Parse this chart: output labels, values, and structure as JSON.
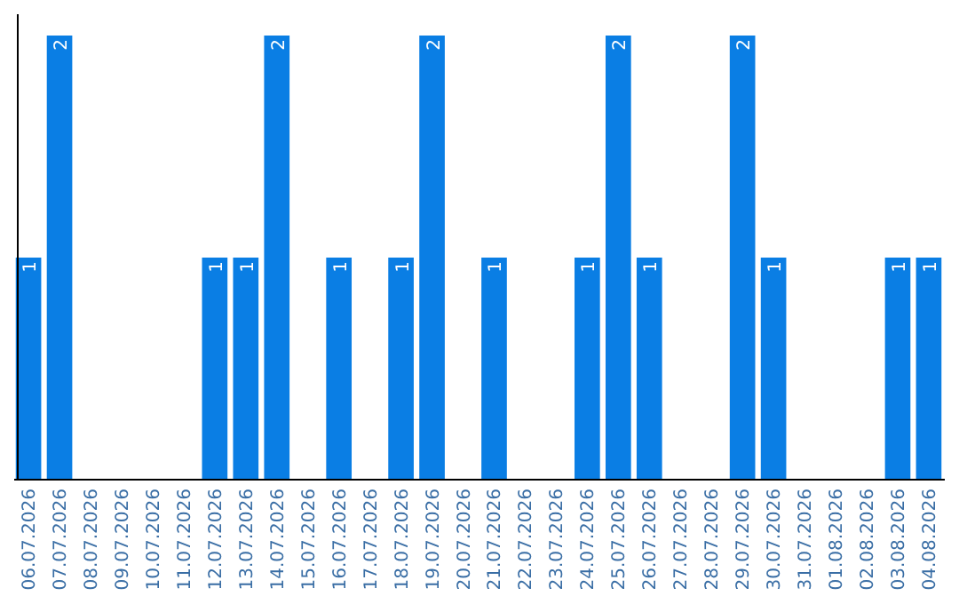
{
  "chart_data": {
    "type": "bar",
    "color": "#0a7ee4",
    "categories": [
      "06.07.2026",
      "07.07.2026",
      "08.07.2026",
      "09.07.2026",
      "10.07.2026",
      "11.07.2026",
      "12.07.2026",
      "13.07.2026",
      "14.07.2026",
      "15.07.2026",
      "16.07.2026",
      "17.07.2026",
      "18.07.2026",
      "19.07.2026",
      "20.07.2026",
      "21.07.2026",
      "22.07.2026",
      "23.07.2026",
      "24.07.2026",
      "25.07.2026",
      "26.07.2026",
      "27.07.2026",
      "28.07.2026",
      "29.07.2026",
      "30.07.2026",
      "31.07.2026",
      "01.08.2026",
      "02.08.2026",
      "03.08.2026",
      "04.08.2026"
    ],
    "values": [
      1,
      2,
      0,
      0,
      0,
      0,
      1,
      1,
      2,
      0,
      1,
      0,
      1,
      2,
      0,
      1,
      0,
      0,
      1,
      2,
      1,
      0,
      0,
      2,
      1,
      0,
      0,
      0,
      1,
      1
    ],
    "value_labels": [
      "1",
      "2",
      null,
      null,
      null,
      null,
      "1",
      "1",
      "2",
      null,
      "1",
      null,
      "1",
      "2",
      null,
      "1",
      null,
      null,
      "1",
      "2",
      "1",
      null,
      null,
      "2",
      "1",
      null,
      null,
      null,
      "1",
      "1"
    ],
    "grid": false
  }
}
